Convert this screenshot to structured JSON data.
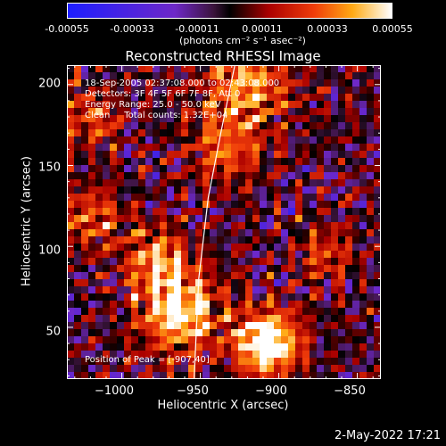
{
  "colorbar": {
    "ticks": [
      "-0.00055",
      "-0.00033",
      "-0.00011",
      "0.00011",
      "0.00033",
      "0.00055"
    ],
    "label": "(photons cm⁻² s⁻¹ asec⁻²)"
  },
  "chart_data": {
    "type": "heatmap",
    "title": "Reconstructed RHESSI Image",
    "xlabel": "Heliocentric X (arcsec)",
    "ylabel": "Heliocentric Y (arcsec)",
    "xlim": [
      -1035,
      -835
    ],
    "ylim": [
      18,
      212
    ],
    "x_ticks": [
      "−1000",
      "−950",
      "−900",
      "−850"
    ],
    "x_tick_values": [
      -1000,
      -950,
      -900,
      -850
    ],
    "y_ticks": [
      "200",
      "150",
      "100",
      "50"
    ],
    "y_tick_values": [
      200,
      150,
      100,
      50
    ],
    "value_range": [
      -0.00055,
      0.00055
    ],
    "peak": [
      -907,
      40
    ],
    "limb_curve": [
      [
        -954,
        18
      ],
      [
        -951,
        80
      ],
      [
        -945,
        130
      ],
      [
        -937,
        170
      ],
      [
        -928,
        212
      ]
    ]
  },
  "info": {
    "line1": "18-Sep-2005 02:37:08.000 to 02:43:08.000",
    "line2": "Detectors: 3F 4F 5F 6F 7F 8F, Att 0",
    "line3": "Energy Range: 25.0 - 50.0 keV",
    "line4": "Clean     Total counts: 1.32E+04",
    "peak_text": "Position of Peak = [-907,40]"
  },
  "footer": {
    "date": "2-May-2022 17:21"
  }
}
